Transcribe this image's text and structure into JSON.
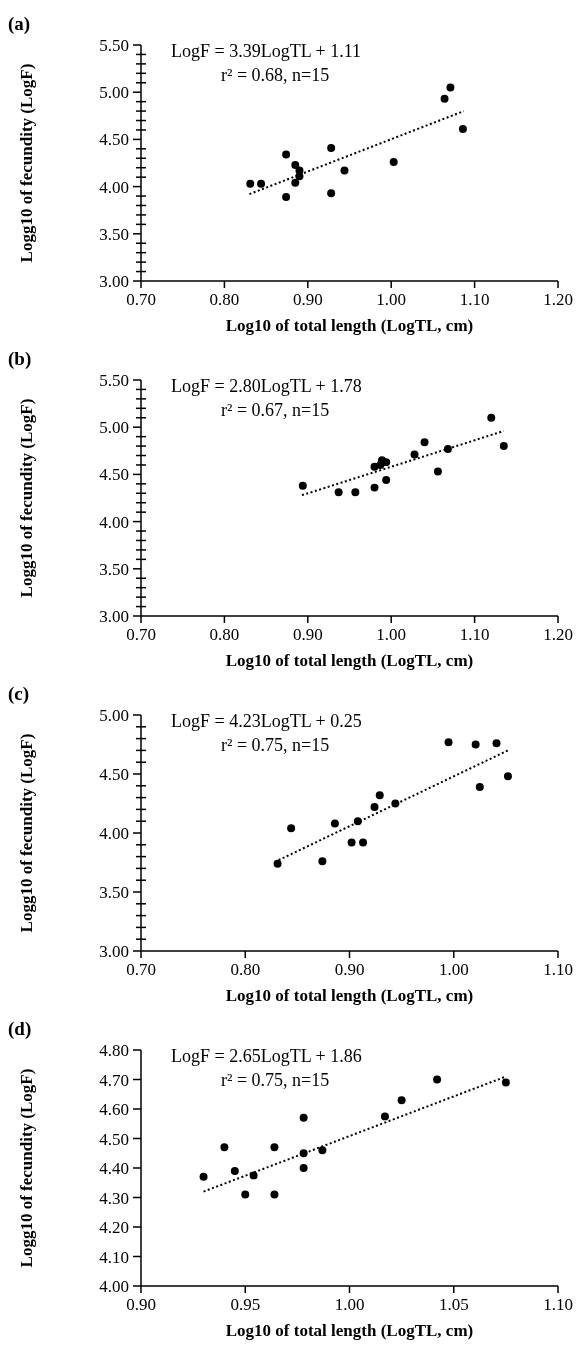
{
  "chart_data": [
    {
      "type": "scatter",
      "title": "(a)",
      "xlabel": "Log10 of total length (LogTL, cm)",
      "ylabel": "Logg10 of fecundity (LogF)",
      "annotations": [
        "LogF = 3.39LogTL + 1.11",
        "r² = 0.68, n=15"
      ],
      "xlim": [
        0.7,
        1.2
      ],
      "xticks": [
        {
          "value": 0.7,
          "label": "0.70"
        },
        {
          "value": 0.8,
          "label": "0.80"
        },
        {
          "value": 0.9,
          "label": "0.90"
        },
        {
          "value": 1.0,
          "label": "1.00"
        },
        {
          "value": 1.1,
          "label": "1.10"
        },
        {
          "value": 1.2,
          "label": "1.20"
        }
      ],
      "ylim": [
        3,
        5.5
      ],
      "yticks": [
        {
          "value": 3,
          "label": "3.00"
        },
        {
          "value": 3.1,
          "label": null
        },
        {
          "value": 3.2,
          "label": null
        },
        {
          "value": 3.3,
          "label": null
        },
        {
          "value": 3.4,
          "label": null
        },
        {
          "value": 3.5,
          "label": "3.50"
        },
        {
          "value": 3.6,
          "label": null
        },
        {
          "value": 3.7,
          "label": null
        },
        {
          "value": 3.8,
          "label": null
        },
        {
          "value": 3.9,
          "label": null
        },
        {
          "value": 4,
          "label": "4.00"
        },
        {
          "value": 4.1,
          "label": null
        },
        {
          "value": 4.2,
          "label": null
        },
        {
          "value": 4.3,
          "label": null
        },
        {
          "value": 4.4,
          "label": null
        },
        {
          "value": 4.5,
          "label": "4.50"
        },
        {
          "value": 4.6,
          "label": null
        },
        {
          "value": 4.7,
          "label": null
        },
        {
          "value": 4.8,
          "label": null
        },
        {
          "value": 4.9,
          "label": null
        },
        {
          "value": 5,
          "label": "5.00"
        },
        {
          "value": 5.1,
          "label": null
        },
        {
          "value": 5.2,
          "label": null
        },
        {
          "value": 5.3,
          "label": null
        },
        {
          "value": 5.4,
          "label": null
        },
        {
          "value": 5.5,
          "label": "5.50"
        }
      ],
      "series": [
        {
          "color": "#000000",
          "marker": "circle",
          "x": [
            0.831,
            0.844,
            0.874,
            0.874,
            0.885,
            0.885,
            0.89,
            0.89,
            0.928,
            0.928,
            0.944,
            1.003,
            1.064,
            1.071,
            1.086
          ],
          "values": [
            4.03,
            4.03,
            4.34,
            3.89,
            4.23,
            4.04,
            4.17,
            4.11,
            4.41,
            3.93,
            4.17,
            4.26,
            4.93,
            5.05,
            4.61
          ]
        },
        {
          "type": "line",
          "color": "#000000",
          "line_style": "dotted",
          "x": [
            0.83,
            1.087
          ],
          "values": [
            3.92,
            4.8
          ]
        }
      ]
    },
    {
      "type": "scatter",
      "title": "(b)",
      "xlabel": "Log10 of total length (LogTL, cm)",
      "ylabel": "Logg10 of fecundity (LogF)",
      "annotations": [
        "LogF = 2.80LogTL + 1.78",
        "r² = 0.67, n=15"
      ],
      "xlim": [
        0.7,
        1.2
      ],
      "xticks": [
        {
          "value": 0.7,
          "label": "0.70"
        },
        {
          "value": 0.8,
          "label": "0.80"
        },
        {
          "value": 0.9,
          "label": "0.90"
        },
        {
          "value": 1.0,
          "label": "1.00"
        },
        {
          "value": 1.1,
          "label": "1.10"
        },
        {
          "value": 1.2,
          "label": "1.20"
        }
      ],
      "ylim": [
        3,
        5.5
      ],
      "yticks": [
        {
          "value": 3,
          "label": "3.00"
        },
        {
          "value": 3.1,
          "label": null
        },
        {
          "value": 3.2,
          "label": null
        },
        {
          "value": 3.3,
          "label": null
        },
        {
          "value": 3.4,
          "label": null
        },
        {
          "value": 3.5,
          "label": "3.50"
        },
        {
          "value": 3.6,
          "label": null
        },
        {
          "value": 3.7,
          "label": null
        },
        {
          "value": 3.8,
          "label": null
        },
        {
          "value": 3.9,
          "label": null
        },
        {
          "value": 4,
          "label": "4.00"
        },
        {
          "value": 4.1,
          "label": null
        },
        {
          "value": 4.2,
          "label": null
        },
        {
          "value": 4.3,
          "label": null
        },
        {
          "value": 4.4,
          "label": null
        },
        {
          "value": 4.5,
          "label": "4.50"
        },
        {
          "value": 4.6,
          "label": null
        },
        {
          "value": 4.7,
          "label": null
        },
        {
          "value": 4.8,
          "label": null
        },
        {
          "value": 4.9,
          "label": null
        },
        {
          "value": 5,
          "label": "5.00"
        },
        {
          "value": 5.1,
          "label": null
        },
        {
          "value": 5.2,
          "label": null
        },
        {
          "value": 5.3,
          "label": null
        },
        {
          "value": 5.4,
          "label": null
        },
        {
          "value": 5.5,
          "label": "5.50"
        }
      ],
      "series": [
        {
          "color": "#000000",
          "marker": "circle",
          "x": [
            0.894,
            0.937,
            0.957,
            0.98,
            0.98,
            0.987,
            0.989,
            0.994,
            0.994,
            1.028,
            1.04,
            1.056,
            1.068,
            1.12,
            1.135
          ],
          "values": [
            4.38,
            4.31,
            4.31,
            4.36,
            4.58,
            4.6,
            4.65,
            4.63,
            4.44,
            4.71,
            4.84,
            4.53,
            4.77,
            5.1,
            4.8
          ]
        },
        {
          "type": "line",
          "color": "#000000",
          "line_style": "dotted",
          "x": [
            0.893,
            1.135
          ],
          "values": [
            4.28,
            4.96
          ]
        }
      ]
    },
    {
      "type": "scatter",
      "title": "(c)",
      "xlabel": "Log10 of total length (LogTL, cm)",
      "ylabel": "Logg10 of fecundity (LogF)",
      "annotations": [
        "LogF = 4.23LogTL + 0.25",
        "r²  = 0.75, n=15"
      ],
      "xlim": [
        0.7,
        1.1
      ],
      "xticks": [
        {
          "value": 0.7,
          "label": "0.70"
        },
        {
          "value": 0.8,
          "label": "0.80"
        },
        {
          "value": 0.9,
          "label": "0.90"
        },
        {
          "value": 1.0,
          "label": "1.00"
        },
        {
          "value": 1.1,
          "label": "1.10"
        }
      ],
      "ylim": [
        3,
        5
      ],
      "yticks": [
        {
          "value": 3,
          "label": "3.00"
        },
        {
          "value": 3.1,
          "label": null
        },
        {
          "value": 3.2,
          "label": null
        },
        {
          "value": 3.3,
          "label": null
        },
        {
          "value": 3.4,
          "label": null
        },
        {
          "value": 3.5,
          "label": "3.50"
        },
        {
          "value": 3.6,
          "label": null
        },
        {
          "value": 3.7,
          "label": null
        },
        {
          "value": 3.8,
          "label": null
        },
        {
          "value": 3.9,
          "label": null
        },
        {
          "value": 4,
          "label": "4.00"
        },
        {
          "value": 4.1,
          "label": null
        },
        {
          "value": 4.2,
          "label": null
        },
        {
          "value": 4.3,
          "label": null
        },
        {
          "value": 4.4,
          "label": null
        },
        {
          "value": 4.5,
          "label": "4.50"
        },
        {
          "value": 4.6,
          "label": null
        },
        {
          "value": 4.7,
          "label": null
        },
        {
          "value": 4.8,
          "label": null
        },
        {
          "value": 4.9,
          "label": null
        },
        {
          "value": 5,
          "label": "5.00"
        }
      ],
      "series": [
        {
          "color": "#000000",
          "marker": "circle",
          "x": [
            0.831,
            0.844,
            0.874,
            0.886,
            0.902,
            0.908,
            0.913,
            0.924,
            0.929,
            0.944,
            0.995,
            1.021,
            1.025,
            1.041,
            1.052
          ],
          "values": [
            3.74,
            4.04,
            3.76,
            4.08,
            3.92,
            4.1,
            3.92,
            4.22,
            4.32,
            4.25,
            4.77,
            4.75,
            4.39,
            4.76,
            4.48
          ]
        },
        {
          "type": "line",
          "color": "#000000",
          "line_style": "dotted",
          "x": [
            0.832,
            1.052
          ],
          "values": [
            3.77,
            4.7
          ]
        }
      ]
    },
    {
      "type": "scatter",
      "title": "(d)",
      "xlabel": "Log10 of total length (LogTL, cm)",
      "ylabel": "Logg10 of fecundity (LogF)",
      "annotations": [
        "LogF = 2.65LogTL + 1.86",
        "r² = 0.75, n=15"
      ],
      "xlim": [
        0.9,
        1.1
      ],
      "xticks": [
        {
          "value": 0.9,
          "label": "0.90"
        },
        {
          "value": 0.95,
          "label": "0.95"
        },
        {
          "value": 1.0,
          "label": "1.00"
        },
        {
          "value": 1.05,
          "label": "1.05"
        },
        {
          "value": 1.1,
          "label": "1.10"
        }
      ],
      "ylim": [
        4,
        4.8
      ],
      "yticks": [
        {
          "value": 4,
          "label": "4.00"
        },
        {
          "value": 4.1,
          "label": "4.10"
        },
        {
          "value": 4.2,
          "label": "4.20"
        },
        {
          "value": 4.3,
          "label": "4.30"
        },
        {
          "value": 4.4,
          "label": "4.40"
        },
        {
          "value": 4.5,
          "label": "4.50"
        },
        {
          "value": 4.6,
          "label": "4.60"
        },
        {
          "value": 4.7,
          "label": "4.70"
        },
        {
          "value": 4.8,
          "label": "4.80"
        }
      ],
      "series": [
        {
          "color": "#000000",
          "marker": "circle",
          "x": [
            0.93,
            0.94,
            0.945,
            0.95,
            0.954,
            0.964,
            0.964,
            0.978,
            0.978,
            0.978,
            0.987,
            1.017,
            1.025,
            1.042,
            1.075
          ],
          "values": [
            4.37,
            4.47,
            4.39,
            4.31,
            4.375,
            4.47,
            4.31,
            4.57,
            4.45,
            4.4,
            4.46,
            4.575,
            4.63,
            4.7,
            4.69
          ]
        },
        {
          "type": "line",
          "color": "#000000",
          "line_style": "dotted",
          "x": [
            0.93,
            1.075
          ],
          "values": [
            4.32,
            4.71
          ]
        }
      ]
    }
  ]
}
